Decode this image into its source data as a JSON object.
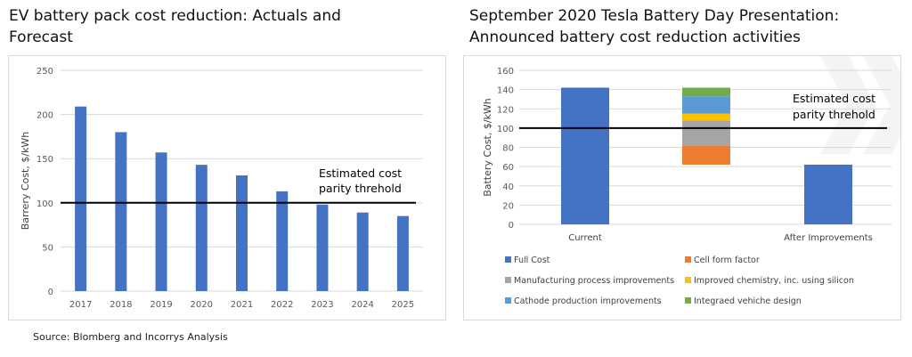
{
  "left": {
    "title": "EV battery pack cost reduction: Actuals and Forecast"
  },
  "right": {
    "title": "September 2020 Tesla Battery Day Presentation: Announced battery cost reduction activities"
  },
  "source": "Source: Blomberg and Incorrys Analysis",
  "chart_data": [
    {
      "type": "bar",
      "title": "EV battery pack cost reduction: Actuals and Forecast",
      "xlabel": "",
      "ylabel": "Barrery Cost, $/kWh",
      "categories": [
        "2017",
        "2018",
        "2019",
        "2020",
        "2021",
        "2022",
        "2023",
        "2024",
        "2025"
      ],
      "values": [
        209,
        180,
        157,
        143,
        131,
        113,
        98,
        89,
        85
      ],
      "ylim": [
        0,
        250
      ],
      "yticks": [
        0,
        50,
        100,
        150,
        200,
        250
      ],
      "bar_color": "#4472c4",
      "reference_line": {
        "value": 100,
        "label": "Estimated cost parity threhold",
        "label_lines": [
          "Estimated cost",
          "parity threhold"
        ]
      },
      "grid": true,
      "legend": "none"
    },
    {
      "type": "bar",
      "subtype": "waterfall",
      "title": "September 2020 Tesla Battery Day Presentation: Announced battery cost reduction activities",
      "xlabel": "",
      "ylabel": "Battery Cost, $/kWh",
      "categories": [
        "Current",
        "",
        "After Improvements"
      ],
      "ylim": [
        0,
        160
      ],
      "yticks": [
        0,
        20,
        40,
        60,
        80,
        100,
        120,
        140,
        160
      ],
      "full_cost": {
        "Current": 142,
        "After Improvements": 62
      },
      "steps": [
        {
          "name": "Cell form factor",
          "from": 62,
          "to": 82,
          "color": "#ed7d31"
        },
        {
          "name": "Manufacturing process improvements",
          "from": 82,
          "to": 108,
          "color": "#a5a5a5"
        },
        {
          "name": "Improved chemistry, inc. using silicon",
          "from": 108,
          "to": 115,
          "color": "#ffc000"
        },
        {
          "name": "Cathode production improvements",
          "from": 115,
          "to": 133,
          "color": "#5b9bd5"
        },
        {
          "name": "Integraed vehiche design",
          "from": 133,
          "to": 142,
          "color": "#70ad47"
        }
      ],
      "reference_line": {
        "value": 100,
        "label": "Estimated cost parity threhold",
        "label_lines": [
          "Estimated cost",
          "parity threhold"
        ]
      },
      "legend": "bottom",
      "legend_entries": [
        {
          "name": "Full Cost",
          "color": "#4472c4"
        },
        {
          "name": "Cell form factor",
          "color": "#ed7d31"
        },
        {
          "name": "Manufacturing process improvements",
          "color": "#a5a5a5"
        },
        {
          "name": "Improved chemistry, inc. using silicon",
          "color": "#ffc000"
        },
        {
          "name": "Cathode production improvements",
          "color": "#5b9bd5"
        },
        {
          "name": "Integraed vehiche design",
          "color": "#70ad47"
        }
      ],
      "grid": true
    }
  ]
}
